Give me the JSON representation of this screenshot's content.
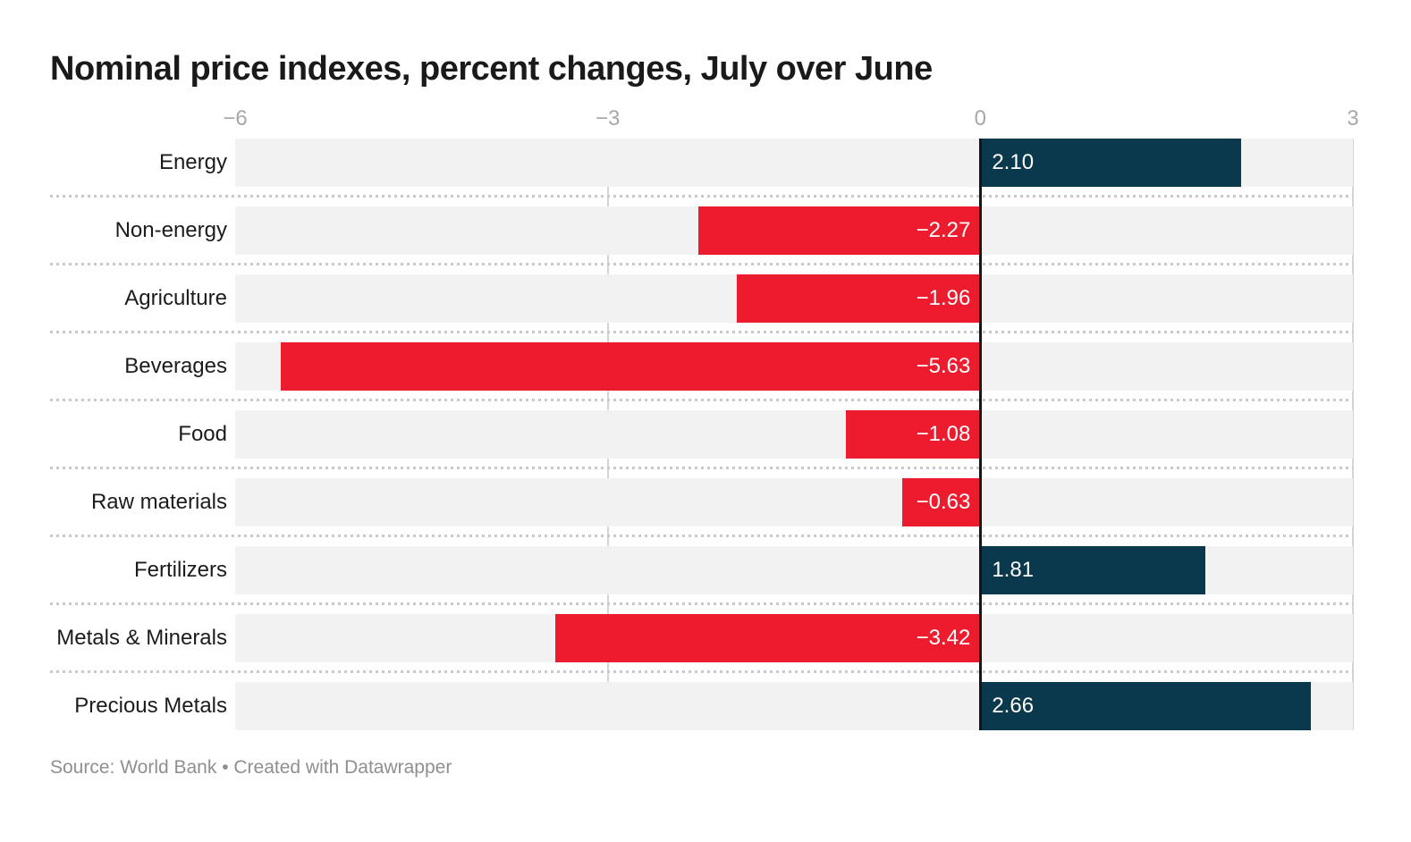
{
  "title": "Nominal price indexes, percent changes, July over June",
  "footer_text": "Source: World Bank • Created with Datawrapper",
  "colors": {
    "positive_bar": "#0a384d",
    "negative_bar": "#ed1b2e",
    "row_background": "#f2f2f2",
    "zero_line": "#161616",
    "gridline": "#d2d5d7",
    "tick_label": "#a6a9ac",
    "category_label": "#1c1c1e",
    "value_label": "#ffffff"
  },
  "chart_data": {
    "type": "bar",
    "orientation": "horizontal",
    "title": "Nominal price indexes, percent changes, July over June",
    "categories": [
      "Energy",
      "Non-energy",
      "Agriculture",
      "Beverages",
      "Food",
      "Raw materials",
      "Fertilizers",
      "Metals & Minerals",
      "Precious Metals"
    ],
    "values": [
      2.1,
      -2.27,
      -1.96,
      -5.63,
      -1.08,
      -0.63,
      1.81,
      -3.42,
      2.66
    ],
    "value_labels": [
      "2.10",
      "−2.27",
      "−1.96",
      "−5.63",
      "−1.08",
      "−0.63",
      "1.81",
      "−3.42",
      "2.66"
    ],
    "xlim": [
      -6,
      3
    ],
    "x_ticks": [
      -6,
      -3,
      0,
      3
    ],
    "x_tick_labels": [
      "−6",
      "−3",
      "0",
      "3"
    ],
    "gridlines_at": [
      -3,
      3
    ],
    "zero_line_at": 0,
    "grid": "vertical",
    "legend": "none",
    "source": "World Bank",
    "tool": "Datawrapper"
  }
}
